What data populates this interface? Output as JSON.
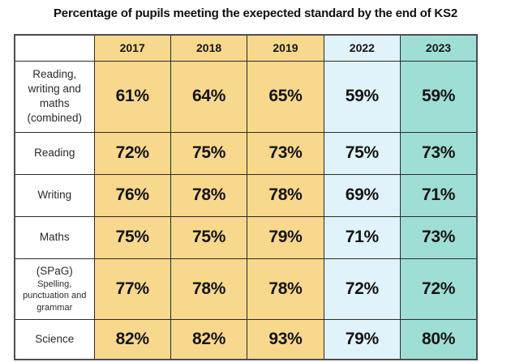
{
  "chart_data": {
    "type": "table",
    "title": "Percentage of pupils meeting the exepected standard by the end of KS2",
    "columns": [
      "2017",
      "2018",
      "2019",
      "2022",
      "2023"
    ],
    "column_colors": [
      "#F8D88C",
      "#F8D88C",
      "#F8D88C",
      "#E0F3FA",
      "#9FDED4"
    ],
    "rows": [
      {
        "label": "Reading, writing and maths (combined)",
        "values": [
          "61%",
          "64%",
          "65%",
          "59%",
          "59%"
        ]
      },
      {
        "label": "Reading",
        "values": [
          "72%",
          "75%",
          "73%",
          "75%",
          "73%"
        ]
      },
      {
        "label": "Writing",
        "values": [
          "76%",
          "78%",
          "78%",
          "69%",
          "71%"
        ]
      },
      {
        "label": "Maths",
        "values": [
          "75%",
          "75%",
          "79%",
          "71%",
          "73%"
        ]
      },
      {
        "label": "(SPaG)",
        "label_sub": "Spelling, punctuation and grammar",
        "values": [
          "77%",
          "78%",
          "78%",
          "72%",
          "72%"
        ]
      },
      {
        "label": "Science",
        "values": [
          "82%",
          "82%",
          "93%",
          "79%",
          "80%"
        ]
      }
    ]
  }
}
